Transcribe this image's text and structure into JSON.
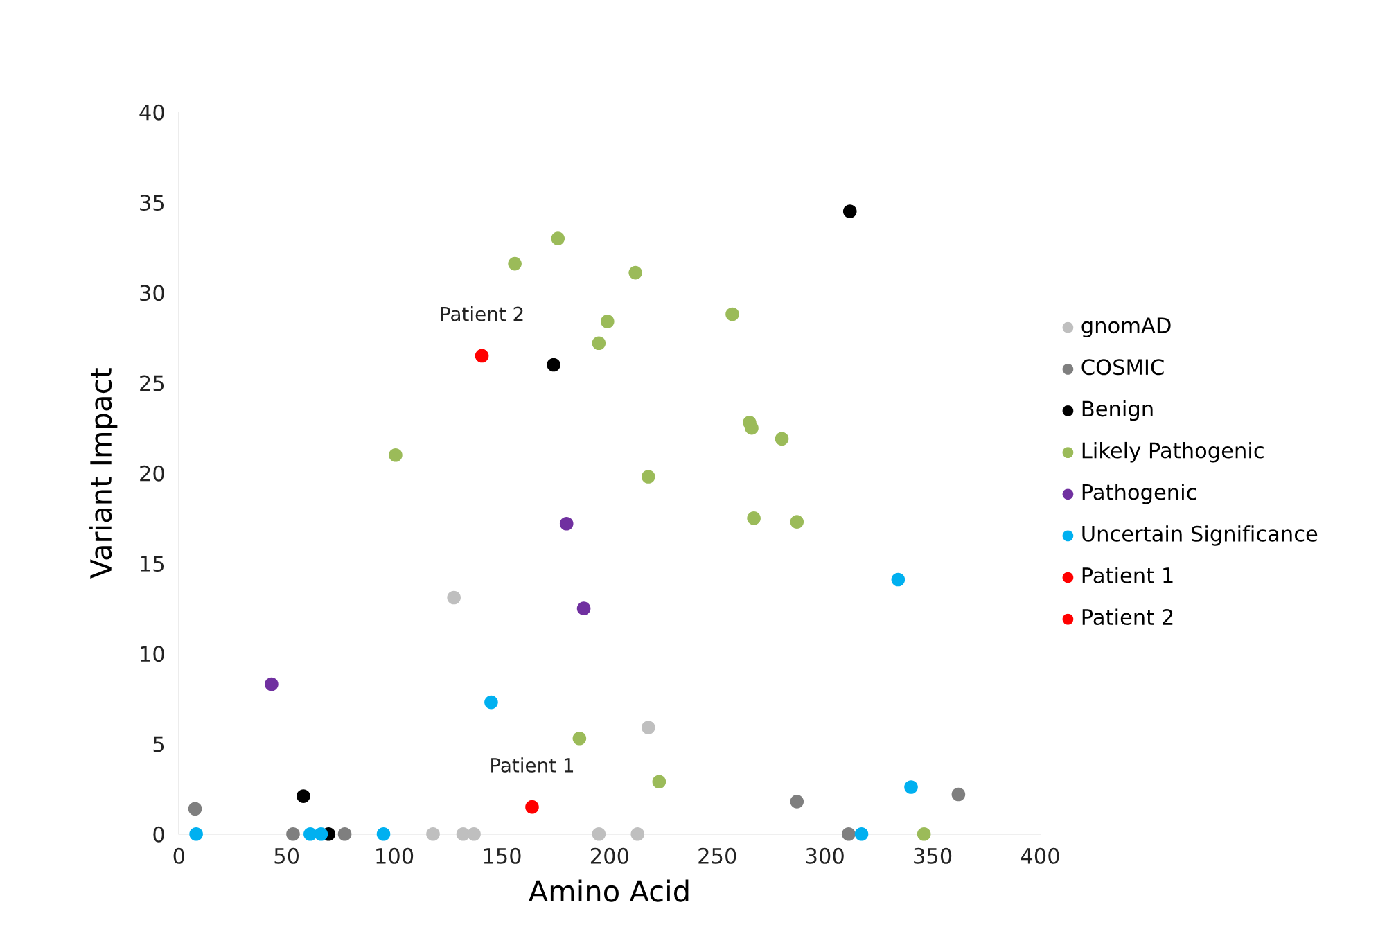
{
  "chart_data": {
    "type": "scatter",
    "xlabel": "Amino Acid",
    "ylabel": "Variant Impact",
    "xlim": [
      0,
      400
    ],
    "xticks": [
      0,
      50,
      100,
      150,
      200,
      250,
      300,
      350,
      400
    ],
    "ylim": [
      0,
      40
    ],
    "yticks": [
      0,
      5,
      10,
      15,
      20,
      25,
      30,
      35,
      40
    ],
    "grid": false,
    "legend": "right",
    "marker": "circle",
    "series": [
      {
        "name": "gnomAD",
        "color": "#bfbfbf",
        "x": [
          127.7,
          218,
          118,
          132,
          137,
          195,
          213
        ],
        "values": [
          13.1,
          5.9,
          0,
          0,
          0,
          0,
          0
        ]
      },
      {
        "name": "COSMIC",
        "color": "#7f7f7f",
        "x": [
          7.5,
          53,
          77,
          287,
          311,
          362
        ],
        "values": [
          1.4,
          0,
          0,
          1.8,
          0,
          2.2
        ]
      },
      {
        "name": "Benign",
        "color": "#000000",
        "x": [
          311.6,
          174,
          57.8,
          69.5
        ],
        "values": [
          34.5,
          26,
          2.1,
          0
        ]
      },
      {
        "name": "Likely Pathogenic",
        "color": "#9bbb59",
        "x": [
          156,
          176,
          212,
          199,
          195,
          257,
          100.6,
          218,
          265,
          266,
          280,
          267,
          287,
          186,
          223,
          346
        ],
        "values": [
          31.6,
          33.0,
          31.1,
          28.4,
          27.2,
          28.8,
          21.0,
          19.8,
          22.8,
          22.5,
          21.9,
          17.5,
          17.3,
          5.3,
          2.9,
          0
        ]
      },
      {
        "name": "Pathogenic",
        "color": "#7030a0",
        "x": [
          180,
          188,
          43
        ],
        "values": [
          17.2,
          12.5,
          8.3
        ]
      },
      {
        "name": "Uncertain Significance",
        "color": "#00b0f0",
        "x": [
          334,
          145,
          340,
          8,
          61,
          66,
          95,
          317
        ],
        "values": [
          14.1,
          7.3,
          2.6,
          0,
          0,
          0,
          0,
          0
        ]
      },
      {
        "name": "Patient 1",
        "color": "#ff0000",
        "x": [
          164
        ],
        "values": [
          1.5
        ]
      },
      {
        "name": "Patient 2",
        "color": "#ff0000",
        "x": [
          140.7
        ],
        "values": [
          26.5
        ]
      }
    ],
    "annotations": [
      {
        "text": "Patient 2",
        "x": 140.7,
        "y": 26.5
      },
      {
        "text": "Patient 1",
        "x": 164,
        "y": 1.5
      }
    ]
  }
}
